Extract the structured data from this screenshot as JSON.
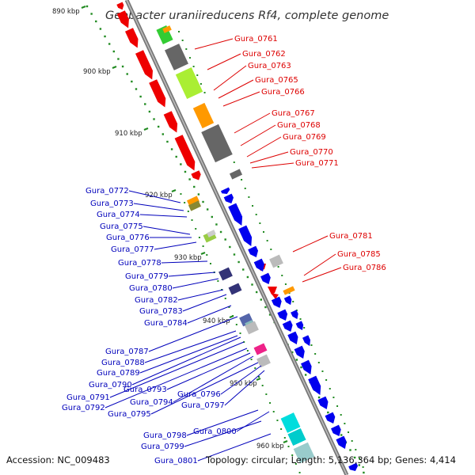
{
  "title": "Geobacter uraniireducens Rf4, complete genome",
  "footer": {
    "accession": "Accession: NC_009483",
    "topology": "Topology: circular; Length: 5,136,364 bp; Genes: 4,414"
  },
  "scale": [
    "890 kbp",
    "900 kbp",
    "910 kbp",
    "920 kbp",
    "930 kbp",
    "940 kbp",
    "950 kbp",
    "960 kbp"
  ],
  "genes_right": [
    "Gura_0761",
    "Gura_0762",
    "Gura_0763",
    "Gura_0765",
    "Gura_0766",
    "Gura_0767",
    "Gura_0768",
    "Gura_0769",
    "Gura_0770",
    "Gura_0771",
    "Gura_0781",
    "Gura_0785",
    "Gura_0786"
  ],
  "genes_left": [
    "Gura_0772",
    "Gura_0773",
    "Gura_0774",
    "Gura_0775",
    "Gura_0776",
    "Gura_0777",
    "Gura_0778",
    "Gura_0779",
    "Gura_0780",
    "Gura_0782",
    "Gura_0783",
    "Gura_0784",
    "Gura_0787",
    "Gura_0788",
    "Gura_0789",
    "Gura_0790",
    "Gura_0791",
    "Gura_0792",
    "Gura_0793",
    "Gura_0794",
    "Gura_0795",
    "Gura_0796",
    "Gura_0797",
    "Gura_0798",
    "Gura_0799",
    "Gura_0800",
    "Gura_0801"
  ],
  "colors": {
    "backbone": "#888888",
    "ticks": "#228b22",
    "forward_strand": "#0000ee",
    "reverse_strand": "#ee0000",
    "label_forward": "#0000bb",
    "label_reverse": "#dd0000"
  }
}
